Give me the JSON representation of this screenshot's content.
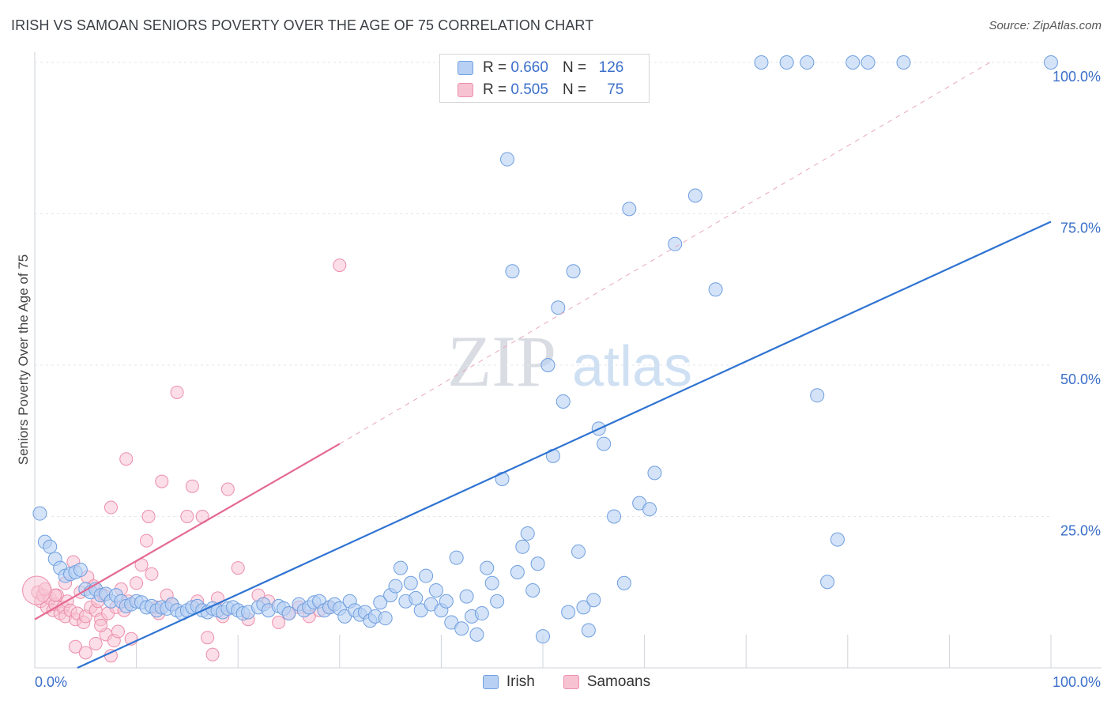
{
  "title": "IRISH VS SAMOAN SENIORS POVERTY OVER THE AGE OF 75 CORRELATION CHART",
  "source": "Source: ZipAtlas.com",
  "watermark": {
    "zip": "ZIP",
    "atlas": "atlas"
  },
  "colors": {
    "irish": "#6f9fe0",
    "irish_fill": "#b8d0f3",
    "irish_line": "#2e73d2",
    "samoan": "#ec8eac",
    "samoan_fill": "#f7c3d3",
    "samoan_line": "#e46a92"
  },
  "legend": {
    "irish": {
      "r_label": "R =",
      "r_value": "0.660",
      "n_label": "N =",
      "n_value": "126"
    },
    "samoan": {
      "r_label": "R =",
      "r_value": "0.505",
      "n_label": "N =",
      "n_value": "75"
    }
  },
  "bottom_legend": {
    "irish": "Irish",
    "samoans": "Samoans"
  },
  "chart_data": {
    "type": "scatter",
    "title": "IRISH VS SAMOAN SENIORS POVERTY OVER THE AGE OF 75 CORRELATION CHART",
    "xlabel": "",
    "ylabel": "Seniors Poverty Over the Age of 75",
    "xlim": [
      0,
      100
    ],
    "ylim": [
      0,
      100
    ],
    "x_tick_labels": {
      "min": "0.0%",
      "max": "100.0%"
    },
    "y_tick_labels": [
      "25.0%",
      "50.0%",
      "75.0%",
      "100.0%"
    ],
    "y_ticks": [
      25,
      50,
      75,
      100
    ],
    "grid": true,
    "series": [
      {
        "name": "Irish",
        "trend": {
          "x": [
            4.2,
            100
          ],
          "y": [
            0,
            73.7
          ]
        },
        "points": [
          [
            0.5,
            25.5
          ],
          [
            1,
            20.8
          ],
          [
            1.5,
            20
          ],
          [
            2,
            18
          ],
          [
            2.5,
            16.5
          ],
          [
            3,
            15.2
          ],
          [
            3.5,
            15.5
          ],
          [
            4,
            15.8
          ],
          [
            4.5,
            16.2
          ],
          [
            5,
            13
          ],
          [
            5.5,
            12.5
          ],
          [
            6,
            13
          ],
          [
            6.5,
            12
          ],
          [
            7,
            12.2
          ],
          [
            7.5,
            11
          ],
          [
            8,
            12
          ],
          [
            8.5,
            11
          ],
          [
            9,
            10.2
          ],
          [
            9.5,
            10.5
          ],
          [
            10,
            11
          ],
          [
            10.5,
            10.8
          ],
          [
            11,
            10
          ],
          [
            11.5,
            10.2
          ],
          [
            12,
            9.5
          ],
          [
            12.5,
            10
          ],
          [
            13,
            9.8
          ],
          [
            13.5,
            10.5
          ],
          [
            14,
            9.5
          ],
          [
            14.5,
            9
          ],
          [
            15,
            9.5
          ],
          [
            15.5,
            10
          ],
          [
            16,
            10.2
          ],
          [
            16.5,
            9.5
          ],
          [
            17,
            9.2
          ],
          [
            17.5,
            9.8
          ],
          [
            18,
            9.5
          ],
          [
            18.5,
            9.2
          ],
          [
            19,
            9.8
          ],
          [
            19.5,
            10
          ],
          [
            20,
            9.5
          ],
          [
            20.5,
            9
          ],
          [
            21,
            9.2
          ],
          [
            22,
            10
          ],
          [
            22.5,
            10.5
          ],
          [
            23,
            9.5
          ],
          [
            24,
            10.2
          ],
          [
            24.5,
            9.8
          ],
          [
            25,
            9
          ],
          [
            26,
            10.5
          ],
          [
            26.5,
            9.5
          ],
          [
            27,
            10
          ],
          [
            27.5,
            10.8
          ],
          [
            28,
            11
          ],
          [
            28.5,
            9.5
          ],
          [
            29,
            10
          ],
          [
            29.5,
            10.5
          ],
          [
            30,
            9.8
          ],
          [
            30.5,
            8.5
          ],
          [
            31,
            11
          ],
          [
            31.5,
            9.5
          ],
          [
            32,
            8.8
          ],
          [
            32.5,
            9.2
          ],
          [
            33,
            7.8
          ],
          [
            33.5,
            8.5
          ],
          [
            34,
            10.8
          ],
          [
            34.5,
            8.2
          ],
          [
            35,
            12
          ],
          [
            35.5,
            13.5
          ],
          [
            36,
            16.5
          ],
          [
            36.5,
            11
          ],
          [
            37,
            14
          ],
          [
            37.5,
            11.5
          ],
          [
            38,
            9.5
          ],
          [
            38.5,
            15.2
          ],
          [
            39,
            10.5
          ],
          [
            39.5,
            12.8
          ],
          [
            40,
            9.5
          ],
          [
            40.5,
            11
          ],
          [
            41,
            7.5
          ],
          [
            41.5,
            18.2
          ],
          [
            42,
            6.5
          ],
          [
            42.5,
            11.8
          ],
          [
            43,
            8.5
          ],
          [
            43.5,
            5.5
          ],
          [
            44,
            9
          ],
          [
            44.5,
            16.5
          ],
          [
            45,
            14
          ],
          [
            45.5,
            11
          ],
          [
            46,
            31.2
          ],
          [
            46.5,
            84
          ],
          [
            47,
            65.5
          ],
          [
            47.5,
            15.8
          ],
          [
            48,
            20
          ],
          [
            48.5,
            22.2
          ],
          [
            49,
            12.8
          ],
          [
            49.5,
            17.2
          ],
          [
            50,
            5.2
          ],
          [
            50.5,
            50
          ],
          [
            51,
            35
          ],
          [
            51.5,
            59.5
          ],
          [
            52,
            44
          ],
          [
            52.5,
            9.2
          ],
          [
            53,
            65.5
          ],
          [
            53.5,
            19.2
          ],
          [
            54,
            10
          ],
          [
            54.5,
            6.2
          ],
          [
            55,
            11.2
          ],
          [
            55.5,
            39.5
          ],
          [
            56,
            37
          ],
          [
            57,
            25
          ],
          [
            58,
            14
          ],
          [
            58.5,
            75.8
          ],
          [
            59.5,
            27.2
          ],
          [
            60.5,
            26.2
          ],
          [
            61,
            32.2
          ],
          [
            63,
            70
          ],
          [
            65,
            78
          ],
          [
            67,
            62.5
          ],
          [
            71.5,
            100
          ],
          [
            74,
            100
          ],
          [
            76,
            100
          ],
          [
            77,
            45
          ],
          [
            78,
            14.2
          ],
          [
            79,
            21.2
          ],
          [
            80.5,
            100
          ],
          [
            82,
            100
          ],
          [
            85.5,
            100
          ],
          [
            100,
            100
          ]
        ]
      },
      {
        "name": "Samoans",
        "trend": {
          "x": [
            0,
            30
          ],
          "y": [
            8,
            37
          ]
        },
        "dashed_extension": {
          "x": [
            30,
            94
          ],
          "y": [
            37,
            100
          ]
        },
        "points": [
          [
            0.3,
            12.5
          ],
          [
            0.6,
            11
          ],
          [
            0.8,
            12
          ],
          [
            1.2,
            10
          ],
          [
            1.5,
            11.5
          ],
          [
            1.8,
            9.5
          ],
          [
            2,
            10.5
          ],
          [
            2.2,
            12
          ],
          [
            2.5,
            9
          ],
          [
            2.8,
            10
          ],
          [
            3,
            8.5
          ],
          [
            3.2,
            11
          ],
          [
            3.5,
            9.5
          ],
          [
            3.8,
            17.5
          ],
          [
            4,
            8
          ],
          [
            4.2,
            9
          ],
          [
            4.5,
            12.5
          ],
          [
            4.8,
            7.5
          ],
          [
            5,
            8.5
          ],
          [
            5.2,
            15
          ],
          [
            5.5,
            10
          ],
          [
            5.8,
            13.5
          ],
          [
            6,
            9.5
          ],
          [
            6.2,
            11
          ],
          [
            6.5,
            8
          ],
          [
            6.8,
            12
          ],
          [
            7,
            5.5
          ],
          [
            7.2,
            9
          ],
          [
            7.5,
            26.5
          ],
          [
            7.8,
            4.5
          ],
          [
            8,
            10
          ],
          [
            8.2,
            6
          ],
          [
            8.5,
            13
          ],
          [
            8.8,
            9.5
          ],
          [
            9,
            34.5
          ],
          [
            9.2,
            11
          ],
          [
            9.5,
            4.8
          ],
          [
            10,
            14
          ],
          [
            10.5,
            17
          ],
          [
            11,
            21
          ],
          [
            11.2,
            25
          ],
          [
            11.5,
            15.5
          ],
          [
            12,
            10
          ],
          [
            12.2,
            9
          ],
          [
            12.5,
            30.8
          ],
          [
            13,
            12
          ],
          [
            13.5,
            10.5
          ],
          [
            14,
            45.5
          ],
          [
            15,
            25
          ],
          [
            15.5,
            30
          ],
          [
            16,
            11
          ],
          [
            16.5,
            25
          ],
          [
            17,
            5
          ],
          [
            17.5,
            2.2
          ],
          [
            18,
            11.5
          ],
          [
            18.5,
            8.5
          ],
          [
            19,
            29.5
          ],
          [
            20,
            16.5
          ],
          [
            21,
            8
          ],
          [
            22,
            12
          ],
          [
            23,
            11
          ],
          [
            24,
            7.5
          ],
          [
            25,
            9
          ],
          [
            26,
            10
          ],
          [
            27,
            8.5
          ],
          [
            28,
            9.5
          ],
          [
            29,
            10
          ],
          [
            30,
            66.5
          ],
          [
            2,
            12
          ],
          [
            3,
            14
          ],
          [
            4,
            3.5
          ],
          [
            5,
            2.5
          ],
          [
            6,
            4
          ],
          [
            6.5,
            7
          ],
          [
            7.5,
            2
          ],
          [
            1,
            13
          ]
        ]
      }
    ]
  }
}
